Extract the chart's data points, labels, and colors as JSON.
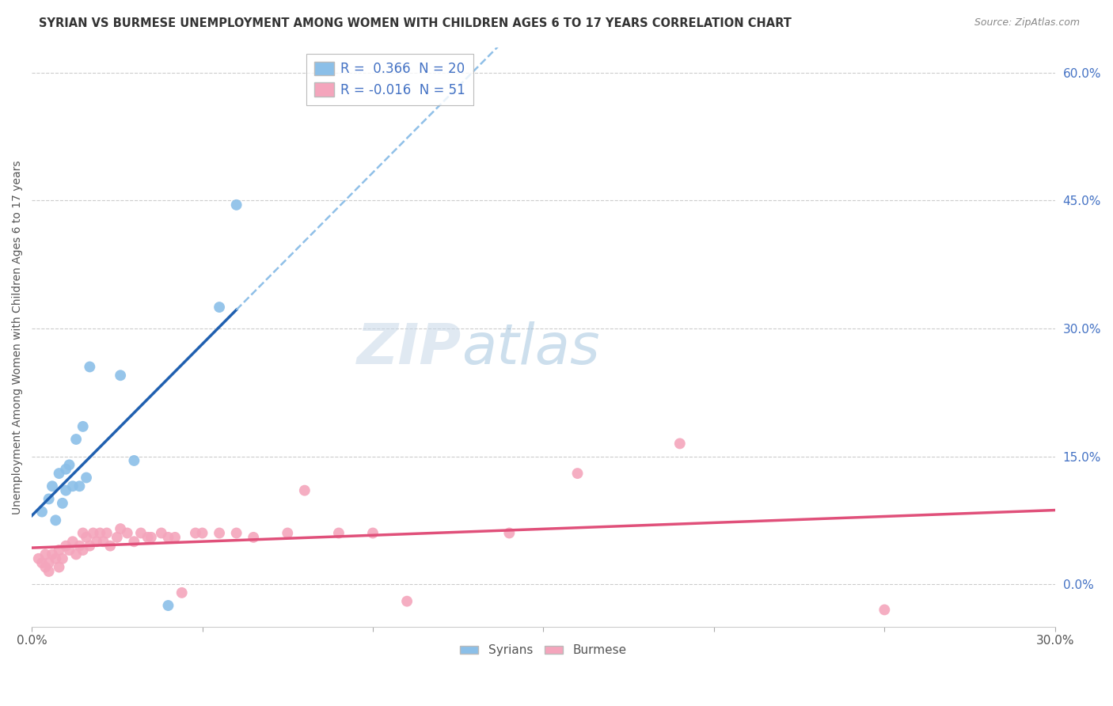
{
  "title": "SYRIAN VS BURMESE UNEMPLOYMENT AMONG WOMEN WITH CHILDREN AGES 6 TO 17 YEARS CORRELATION CHART",
  "source": "Source: ZipAtlas.com",
  "ylabel": "Unemployment Among Women with Children Ages 6 to 17 years",
  "xmin": 0.0,
  "xmax": 0.3,
  "ymin": -0.05,
  "ymax": 0.63,
  "yticks_right": [
    0.0,
    0.15,
    0.3,
    0.45,
    0.6
  ],
  "ytick_labels_right": [
    "0.0%",
    "15.0%",
    "30.0%",
    "45.0%",
    "60.0%"
  ],
  "xticks": [
    0.0,
    0.05,
    0.1,
    0.15,
    0.2,
    0.25,
    0.3
  ],
  "legend_r_syrian": "0.366",
  "legend_n_syrian": "20",
  "legend_r_burmese": "-0.016",
  "legend_n_burmese": "51",
  "syrian_color": "#8bbfe8",
  "burmese_color": "#f4a5bc",
  "syrian_line_color": "#2060b0",
  "burmese_line_color": "#e0507a",
  "syrian_dashed_color": "#90c0e8",
  "background_color": "#ffffff",
  "syrian_x": [
    0.003,
    0.005,
    0.006,
    0.007,
    0.008,
    0.009,
    0.01,
    0.01,
    0.011,
    0.012,
    0.013,
    0.014,
    0.015,
    0.016,
    0.017,
    0.026,
    0.03,
    0.04,
    0.055,
    0.06
  ],
  "syrian_y": [
    0.085,
    0.1,
    0.115,
    0.075,
    0.13,
    0.095,
    0.135,
    0.11,
    0.14,
    0.115,
    0.17,
    0.115,
    0.185,
    0.125,
    0.255,
    0.245,
    0.145,
    -0.025,
    0.325,
    0.445
  ],
  "burmese_x": [
    0.002,
    0.003,
    0.004,
    0.004,
    0.005,
    0.005,
    0.006,
    0.007,
    0.008,
    0.008,
    0.009,
    0.01,
    0.011,
    0.012,
    0.013,
    0.014,
    0.015,
    0.015,
    0.016,
    0.017,
    0.018,
    0.019,
    0.02,
    0.021,
    0.022,
    0.023,
    0.025,
    0.026,
    0.028,
    0.03,
    0.032,
    0.034,
    0.035,
    0.038,
    0.04,
    0.042,
    0.044,
    0.048,
    0.05,
    0.055,
    0.06,
    0.065,
    0.075,
    0.08,
    0.09,
    0.1,
    0.11,
    0.14,
    0.16,
    0.19,
    0.25
  ],
  "burmese_y": [
    0.03,
    0.025,
    0.035,
    0.02,
    0.025,
    0.015,
    0.035,
    0.03,
    0.02,
    0.04,
    0.03,
    0.045,
    0.04,
    0.05,
    0.035,
    0.045,
    0.06,
    0.04,
    0.055,
    0.045,
    0.06,
    0.05,
    0.06,
    0.05,
    0.06,
    0.045,
    0.055,
    0.065,
    0.06,
    0.05,
    0.06,
    0.055,
    0.055,
    0.06,
    0.055,
    0.055,
    -0.01,
    0.06,
    0.06,
    0.06,
    0.06,
    0.055,
    0.06,
    0.11,
    0.06,
    0.06,
    -0.02,
    0.06,
    0.13,
    0.165,
    -0.03
  ]
}
